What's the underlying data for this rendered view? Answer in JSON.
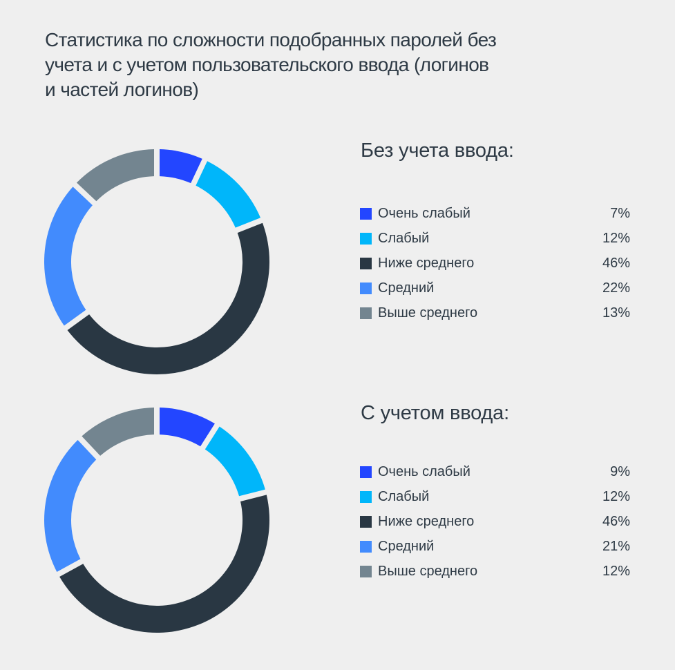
{
  "title": "Статистика по сложности подобранных паролей без учета и с учетом пользовательского ввода (логинов и частей логинов)",
  "title_lines": [
    "Статистика по сложности подобранных паролей без",
    "учета и с учетом пользовательского ввода (логинов",
    "и частей логинов)"
  ],
  "colors": {
    "very_weak": "#2346ff",
    "weak": "#00b6fa",
    "below_avg": "#293743",
    "average": "#428bfd",
    "above_avg": "#738590",
    "background": "#efefef"
  },
  "sections": [
    {
      "title": "Без учета ввода:",
      "items": [
        {
          "label": "Очень слабый",
          "value": "7%",
          "color": "#2346ff"
        },
        {
          "label": "Слабый",
          "value": "12%",
          "color": "#00b6fa"
        },
        {
          "label": "Ниже среднего",
          "value": "46%",
          "color": "#293743"
        },
        {
          "label": "Средний",
          "value": "22%",
          "color": "#428bfd"
        },
        {
          "label": "Выше среднего",
          "value": "13%",
          "color": "#738590"
        }
      ]
    },
    {
      "title": "С учетом ввода:",
      "items": [
        {
          "label": "Очень слабый",
          "value": "9%",
          "color": "#2346ff"
        },
        {
          "label": "Слабый",
          "value": "12%",
          "color": "#00b6fa"
        },
        {
          "label": "Ниже среднего",
          "value": "46%",
          "color": "#293743"
        },
        {
          "label": "Средний",
          "value": "21%",
          "color": "#428bfd"
        },
        {
          "label": "Выше среднего",
          "value": "12%",
          "color": "#738590"
        }
      ]
    }
  ],
  "chart_data": [
    {
      "type": "pie",
      "subtype": "donut",
      "title": "Без учета ввода:",
      "categories": [
        "Очень слабый",
        "Слабый",
        "Ниже среднего",
        "Средний",
        "Выше среднего"
      ],
      "values": [
        7,
        12,
        46,
        22,
        13
      ],
      "unit": "%",
      "legend_position": "right"
    },
    {
      "type": "pie",
      "subtype": "donut",
      "title": "С учетом ввода:",
      "categories": [
        "Очень слабый",
        "Слабый",
        "Ниже среднего",
        "Средний",
        "Выше среднего"
      ],
      "values": [
        9,
        12,
        46,
        21,
        12
      ],
      "unit": "%",
      "legend_position": "right"
    }
  ]
}
